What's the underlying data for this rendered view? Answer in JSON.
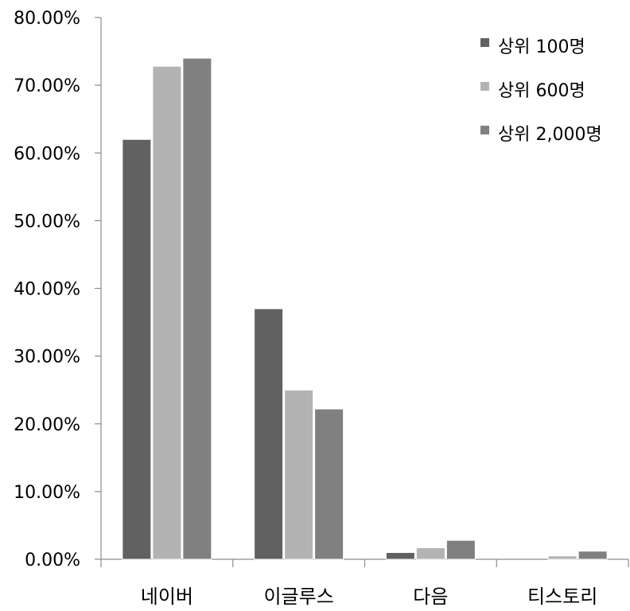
{
  "chart_data": {
    "type": "bar",
    "title": "",
    "xlabel": "",
    "ylabel": "",
    "categories": [
      "네이버",
      "이글루스",
      "다음",
      "티스토리"
    ],
    "series": [
      {
        "name": "상위 100명",
        "color": "#616161",
        "values": [
          62.0,
          37.0,
          1.0,
          0.0
        ]
      },
      {
        "name": "상위 600명",
        "color": "#b3b3b3",
        "values": [
          72.8,
          25.0,
          1.7,
          0.5
        ]
      },
      {
        "name": "상위 2,000명",
        "color": "#808080",
        "values": [
          74.0,
          22.2,
          2.8,
          1.2
        ]
      }
    ],
    "ylim": [
      0,
      80
    ],
    "y_ticks": [
      0,
      10,
      20,
      30,
      40,
      50,
      60,
      70,
      80
    ],
    "y_tick_labels": [
      "0.00%",
      "10.00%",
      "20.00%",
      "30.00%",
      "40.00%",
      "50.00%",
      "60.00%",
      "70.00%",
      "80.00%"
    ],
    "grid": false,
    "legend_position": "top-right"
  }
}
